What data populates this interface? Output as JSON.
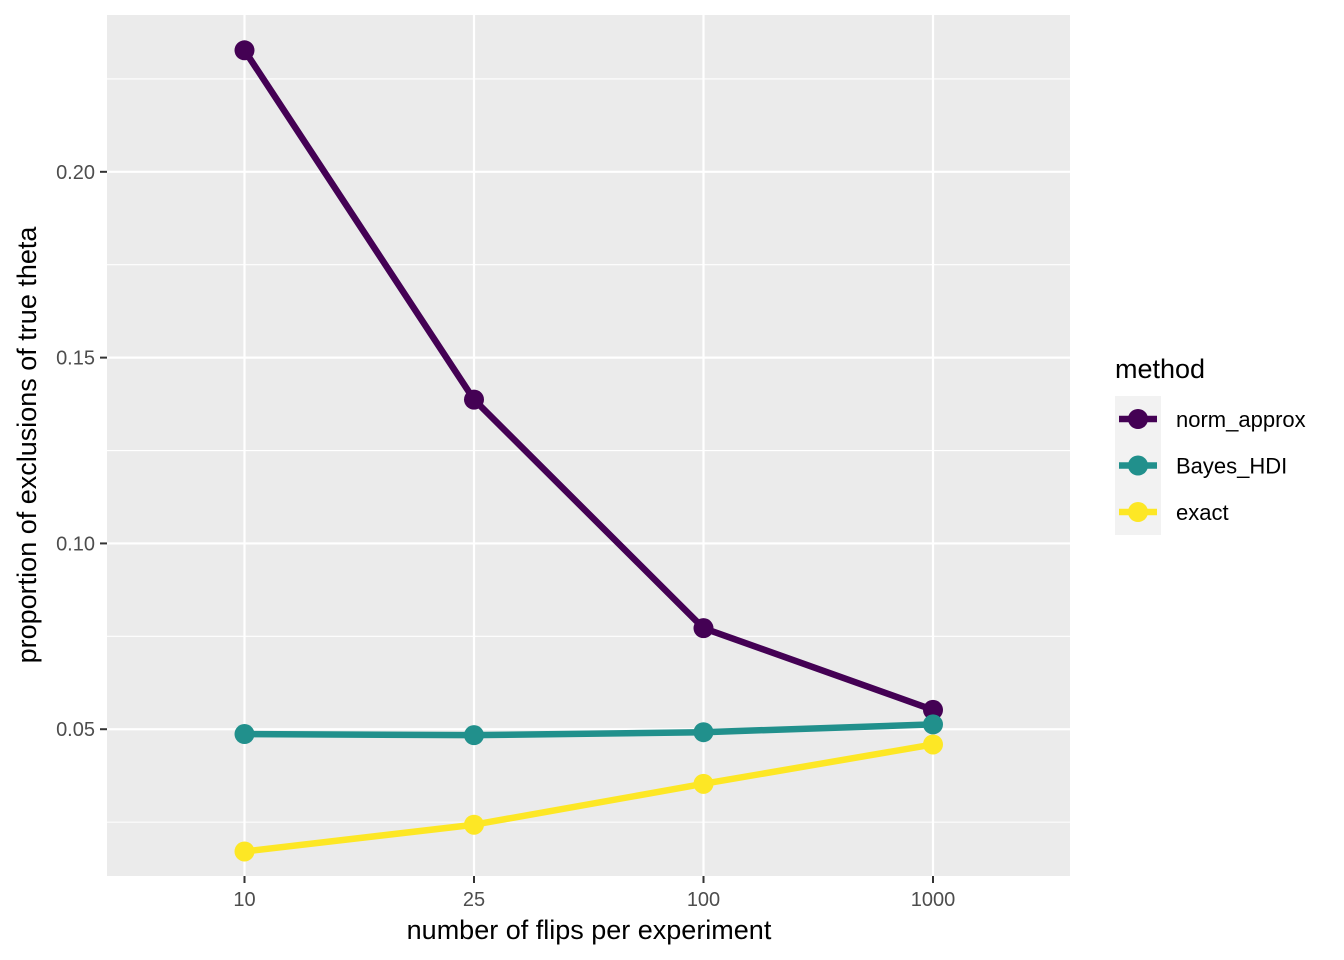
{
  "chart_data": {
    "type": "line",
    "categories": [
      "10",
      "25",
      "100",
      "1000"
    ],
    "xlabel": "number of flips per experiment",
    "ylabel": "proportion of exclusions of true theta",
    "yticks": [
      "0.05",
      "0.10",
      "0.15",
      "0.20"
    ],
    "ylim": [
      0.0105,
      0.2422
    ],
    "grid": true,
    "legend": {
      "title": "method",
      "position": "right"
    },
    "series": [
      {
        "name": "norm_approx",
        "color": "#440154",
        "values": [
          0.2327,
          0.1387,
          0.0772,
          0.0552
        ]
      },
      {
        "name": "Bayes_HDI",
        "color": "#21908C",
        "values": [
          0.0487,
          0.0484,
          0.0492,
          0.0513
        ]
      },
      {
        "name": "exact",
        "color": "#FDE725",
        "values": [
          0.0171,
          0.0243,
          0.0353,
          0.0459
        ]
      }
    ]
  }
}
